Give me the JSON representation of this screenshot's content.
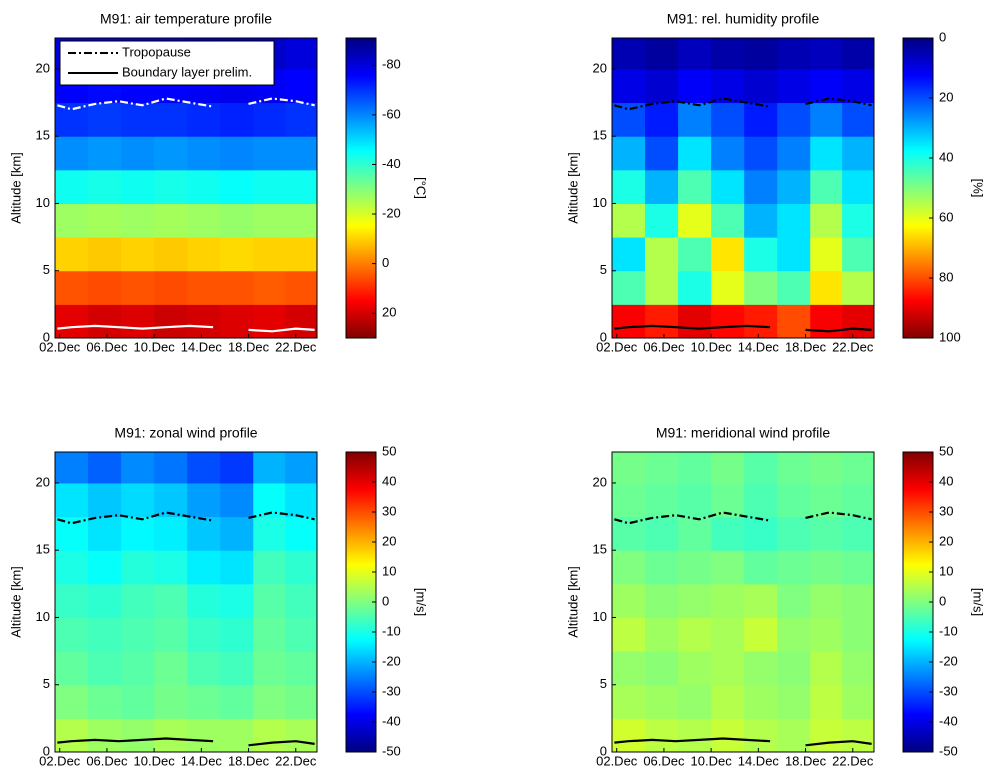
{
  "chart_data": [
    {
      "type": "heatmap",
      "title": "M91: air temperature profile",
      "ylabel": "Altitude [km]",
      "clabel": "[°C]",
      "xlim": [
        1.6,
        23.8
      ],
      "xticks": [
        {
          "value": 2,
          "label": "02.Dec"
        },
        {
          "value": 6,
          "label": "06.Dec"
        },
        {
          "value": 10,
          "label": "10.Dec"
        },
        {
          "value": 14,
          "label": "14.Dec"
        },
        {
          "value": 18,
          "label": "18.Dec"
        },
        {
          "value": 22,
          "label": "22.Dec"
        }
      ],
      "ylim": [
        0,
        22.3
      ],
      "yticks": [
        0,
        5,
        10,
        15,
        20
      ],
      "clim": [
        -91,
        30
      ],
      "cticks": [
        20,
        0,
        -20,
        -40,
        -60,
        -80
      ],
      "creverse": true,
      "xbins": [
        1.6,
        4.4,
        7.2,
        10,
        12.8,
        15.6,
        18.4,
        21.1,
        23.8
      ],
      "ybins": [
        0,
        2.5,
        5,
        7.5,
        10,
        12.5,
        15,
        17.5,
        20,
        22.3
      ],
      "z": [
        [
          18,
          20,
          19,
          21,
          20,
          19,
          18,
          20
        ],
        [
          5,
          6,
          5,
          6,
          5,
          5,
          4,
          5
        ],
        [
          -10,
          -9,
          -10,
          -9,
          -10,
          -11,
          -10,
          -10
        ],
        [
          -27,
          -26,
          -27,
          -26,
          -27,
          -28,
          -27,
          -27
        ],
        [
          -44,
          -43,
          -44,
          -43,
          -44,
          -45,
          -44,
          -44
        ],
        [
          -59,
          -58,
          -59,
          -58,
          -59,
          -60,
          -59,
          -59
        ],
        [
          -70,
          -69,
          -70,
          -70,
          -71,
          -72,
          -71,
          -70
        ],
        [
          -76,
          -75,
          -76,
          -76,
          -77,
          -78,
          -77,
          -76
        ],
        [
          -80,
          -79,
          -80,
          -80,
          -82,
          -83,
          -82,
          -80
        ]
      ],
      "legend": "upper left",
      "series": [
        {
          "name": "Tropopause",
          "color": "#ffffff",
          "style": "dashdot",
          "x": [
            1.8,
            3,
            5,
            7,
            9,
            11,
            13,
            15,
            16.5,
            18,
            20,
            22,
            23.6
          ],
          "values": [
            17.3,
            17.0,
            17.4,
            17.6,
            17.3,
            17.8,
            17.5,
            17.2,
            null,
            17.4,
            17.8,
            17.6,
            17.3
          ]
        },
        {
          "name": "Boundary layer prelim.",
          "color": "#ffffff",
          "style": "solid",
          "x": [
            1.8,
            3,
            5,
            7,
            9,
            11,
            13,
            15,
            16.5,
            18,
            20,
            22,
            23.6
          ],
          "values": [
            0.7,
            0.8,
            0.9,
            0.8,
            0.7,
            0.8,
            0.9,
            0.8,
            null,
            0.6,
            0.5,
            0.7,
            0.6
          ]
        }
      ]
    },
    {
      "type": "heatmap",
      "title": "M91: rel. humidity profile",
      "ylabel": "Altitude [km]",
      "clabel": "[%]",
      "xlim": [
        1.6,
        23.8
      ],
      "xticks": [
        {
          "value": 2,
          "label": "02.Dec"
        },
        {
          "value": 6,
          "label": "06.Dec"
        },
        {
          "value": 10,
          "label": "10.Dec"
        },
        {
          "value": 14,
          "label": "14.Dec"
        },
        {
          "value": 18,
          "label": "18.Dec"
        },
        {
          "value": 22,
          "label": "22.Dec"
        }
      ],
      "ylim": [
        0,
        22.3
      ],
      "yticks": [
        0,
        5,
        10,
        15,
        20
      ],
      "clim": [
        0,
        100
      ],
      "cticks": [
        0,
        20,
        40,
        60,
        80,
        100
      ],
      "creverse": true,
      "xbins": [
        1.6,
        4.4,
        7.2,
        10,
        12.8,
        15.6,
        18.4,
        21.1,
        23.8
      ],
      "ybins": [
        0,
        2.5,
        5,
        7.5,
        10,
        12.5,
        15,
        17.5,
        20,
        22.3
      ],
      "z": [
        [
          88,
          85,
          90,
          87,
          85,
          80,
          88,
          90
        ],
        [
          45,
          55,
          40,
          60,
          50,
          45,
          65,
          55
        ],
        [
          35,
          55,
          45,
          65,
          40,
          35,
          60,
          45
        ],
        [
          55,
          40,
          60,
          45,
          30,
          35,
          55,
          40
        ],
        [
          40,
          30,
          45,
          35,
          25,
          30,
          45,
          35
        ],
        [
          30,
          20,
          35,
          25,
          20,
          25,
          35,
          30
        ],
        [
          20,
          15,
          25,
          20,
          15,
          20,
          25,
          20
        ],
        [
          10,
          8,
          12,
          10,
          8,
          10,
          12,
          10
        ],
        [
          5,
          3,
          6,
          4,
          3,
          5,
          6,
          4
        ]
      ],
      "series": [
        {
          "color": "#000000",
          "style": "dashdot",
          "x": [
            1.8,
            3,
            5,
            7,
            9,
            11,
            13,
            15,
            16.5,
            18,
            20,
            22,
            23.6
          ],
          "values": [
            17.3,
            17.0,
            17.4,
            17.6,
            17.3,
            17.8,
            17.5,
            17.2,
            null,
            17.4,
            17.8,
            17.6,
            17.3
          ]
        },
        {
          "color": "#000000",
          "style": "solid",
          "x": [
            1.8,
            3,
            5,
            7,
            9,
            11,
            13,
            15,
            16.5,
            18,
            20,
            22,
            23.6
          ],
          "values": [
            0.7,
            0.8,
            0.9,
            0.8,
            0.7,
            0.8,
            0.9,
            0.8,
            null,
            0.6,
            0.5,
            0.7,
            0.6
          ]
        }
      ]
    },
    {
      "type": "heatmap",
      "title": "M91: zonal wind profile",
      "ylabel": "Altitude [km]",
      "clabel": "[m/s]",
      "xlim": [
        1.6,
        23.8
      ],
      "xticks": [
        {
          "value": 2,
          "label": "02.Dec"
        },
        {
          "value": 6,
          "label": "06.Dec"
        },
        {
          "value": 10,
          "label": "10.Dec"
        },
        {
          "value": 14,
          "label": "14.Dec"
        },
        {
          "value": 18,
          "label": "18.Dec"
        },
        {
          "value": 22,
          "label": "22.Dec"
        }
      ],
      "ylim": [
        0,
        22.3
      ],
      "yticks": [
        0,
        5,
        10,
        15,
        20
      ],
      "clim": [
        -50,
        50
      ],
      "cticks": [
        -50,
        -40,
        -30,
        -20,
        -10,
        0,
        10,
        20,
        30,
        40,
        50
      ],
      "creverse": false,
      "xbins": [
        1.6,
        4.4,
        7.2,
        10,
        12.8,
        15.6,
        18.4,
        21.1,
        23.8
      ],
      "ybins": [
        0,
        2.5,
        5,
        7.5,
        10,
        12.5,
        15,
        17.5,
        20,
        22.3
      ],
      "z": [
        [
          5,
          3,
          2,
          4,
          3,
          3,
          5,
          4
        ],
        [
          0,
          -2,
          -3,
          -1,
          -2,
          -3,
          0,
          -1
        ],
        [
          -3,
          -5,
          -4,
          -2,
          -5,
          -6,
          -2,
          -3
        ],
        [
          -5,
          -6,
          -5,
          -4,
          -7,
          -8,
          -3,
          -5
        ],
        [
          -7,
          -8,
          -6,
          -5,
          -9,
          -10,
          -4,
          -6
        ],
        [
          -10,
          -12,
          -9,
          -10,
          -14,
          -15,
          -6,
          -8
        ],
        [
          -12,
          -15,
          -13,
          -14,
          -18,
          -20,
          -10,
          -12
        ],
        [
          -15,
          -18,
          -16,
          -18,
          -22,
          -24,
          -12,
          -15
        ],
        [
          -25,
          -28,
          -24,
          -26,
          -30,
          -32,
          -20,
          -22
        ]
      ],
      "series": [
        {
          "color": "#000000",
          "style": "dashdot",
          "x": [
            1.8,
            3,
            5,
            7,
            9,
            11,
            13,
            15,
            16.5,
            18,
            20,
            22,
            23.6
          ],
          "values": [
            17.3,
            17.0,
            17.4,
            17.6,
            17.3,
            17.8,
            17.5,
            17.2,
            null,
            17.4,
            17.8,
            17.6,
            17.3
          ]
        },
        {
          "color": "#000000",
          "style": "solid",
          "x": [
            1.8,
            3,
            5,
            7,
            9,
            11,
            13,
            15,
            16.5,
            18,
            20,
            22,
            23.6
          ],
          "values": [
            0.7,
            0.8,
            0.9,
            0.8,
            0.9,
            1.0,
            0.9,
            0.8,
            null,
            0.5,
            0.7,
            0.8,
            0.6
          ]
        }
      ]
    },
    {
      "type": "heatmap",
      "title": "M91: meridional wind profile",
      "ylabel": "Altitude [km]",
      "clabel": "[m/s]",
      "xlim": [
        1.6,
        23.8
      ],
      "xticks": [
        {
          "value": 2,
          "label": "02.Dec"
        },
        {
          "value": 6,
          "label": "06.Dec"
        },
        {
          "value": 10,
          "label": "10.Dec"
        },
        {
          "value": 14,
          "label": "14.Dec"
        },
        {
          "value": 18,
          "label": "18.Dec"
        },
        {
          "value": 22,
          "label": "22.Dec"
        }
      ],
      "ylim": [
        0,
        22.3
      ],
      "yticks": [
        0,
        5,
        10,
        15,
        20
      ],
      "clim": [
        -50,
        50
      ],
      "cticks": [
        -50,
        -40,
        -30,
        -20,
        -10,
        0,
        10,
        20,
        30,
        40,
        50
      ],
      "creverse": false,
      "xbins": [
        1.6,
        4.4,
        7.2,
        10,
        12.8,
        15.6,
        18.4,
        21.1,
        23.8
      ],
      "ybins": [
        0,
        2.5,
        5,
        7.5,
        10,
        12.5,
        15,
        17.5,
        20,
        22.3
      ],
      "z": [
        [
          8,
          6,
          5,
          7,
          5,
          4,
          7,
          6
        ],
        [
          4,
          3,
          2,
          5,
          3,
          2,
          6,
          3
        ],
        [
          2,
          1,
          3,
          4,
          2,
          1,
          5,
          2
        ],
        [
          6,
          3,
          5,
          4,
          7,
          2,
          3,
          1
        ],
        [
          3,
          1,
          2,
          3,
          4,
          0,
          2,
          1
        ],
        [
          0,
          -2,
          -1,
          0,
          -3,
          -2,
          -1,
          -2
        ],
        [
          -4,
          -5,
          -3,
          -6,
          -7,
          -5,
          -4,
          -5
        ],
        [
          -2,
          -3,
          -4,
          -2,
          -5,
          -3,
          -2,
          -3
        ],
        [
          -1,
          -2,
          -3,
          -1,
          -4,
          -2,
          -1,
          -2
        ]
      ],
      "series": [
        {
          "color": "#000000",
          "style": "dashdot",
          "x": [
            1.8,
            3,
            5,
            7,
            9,
            11,
            13,
            15,
            16.5,
            18,
            20,
            22,
            23.6
          ],
          "values": [
            17.3,
            17.0,
            17.4,
            17.6,
            17.3,
            17.8,
            17.5,
            17.2,
            null,
            17.4,
            17.8,
            17.6,
            17.3
          ]
        },
        {
          "color": "#000000",
          "style": "solid",
          "x": [
            1.8,
            3,
            5,
            7,
            9,
            11,
            13,
            15,
            16.5,
            18,
            20,
            22,
            23.6
          ],
          "values": [
            0.7,
            0.8,
            0.9,
            0.8,
            0.9,
            1.0,
            0.9,
            0.8,
            null,
            0.5,
            0.7,
            0.8,
            0.6
          ]
        }
      ]
    }
  ]
}
